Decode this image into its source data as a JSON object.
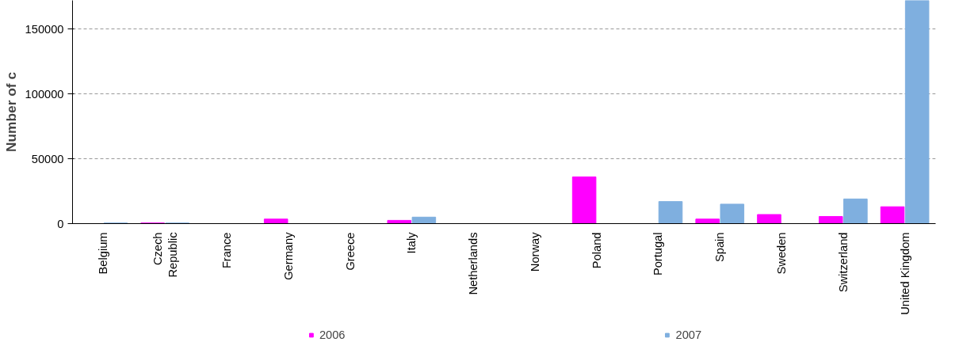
{
  "chart_data": {
    "type": "bar",
    "ylabel": "Number of c",
    "categories": [
      "Belgium",
      "Czech\nRepublic",
      "France",
      "Germany",
      "Greece",
      "Italy",
      "Netherlands",
      "Norway",
      "Poland",
      "Portugal",
      "Spain",
      "Sweden",
      "Switzerland",
      "United Kingdom"
    ],
    "series": [
      {
        "name": "2006",
        "color": "#ff00ff",
        "values": [
          0,
          500,
          0,
          3500,
          0,
          2500,
          0,
          0,
          36000,
          0,
          3500,
          7000,
          5500,
          13000
        ]
      },
      {
        "name": "2007",
        "color": "#7fafdf",
        "values": [
          500,
          500,
          0,
          0,
          0,
          5000,
          0,
          0,
          0,
          17000,
          15000,
          0,
          19000,
          172000
        ]
      }
    ],
    "ylim": [
      0,
      172000
    ],
    "yticks": [
      0,
      50000,
      100000,
      150000
    ],
    "grid": "y",
    "legend": "bottom"
  }
}
